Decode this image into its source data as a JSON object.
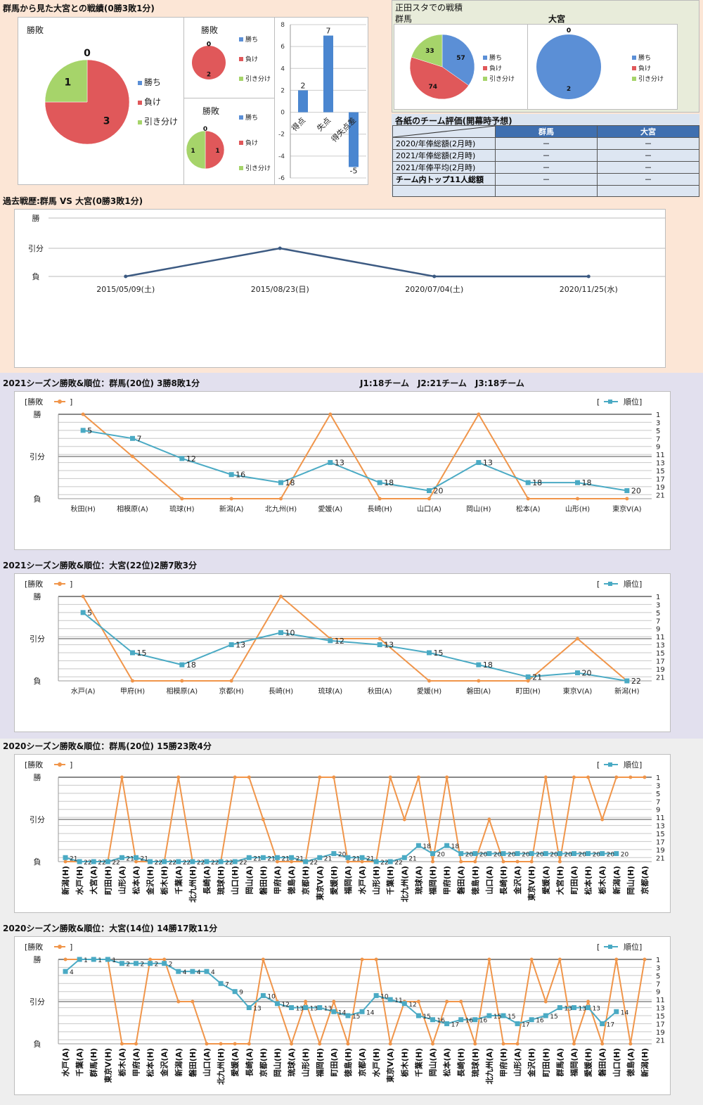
{
  "colors": {
    "win": "#5b8fd6",
    "loss": "#e0585a",
    "draw": "#a6d46a",
    "result": "#f0954a",
    "rank": "#4aaac4",
    "line": "#3c5a82",
    "bar": "#4a86d0"
  },
  "section1": {
    "title": "群馬から見た大宮との戦績(0勝3敗1分)",
    "legend": [
      "勝ち",
      "負け",
      "引き分け"
    ],
    "pie_main": {
      "title": "勝敗",
      "values": [
        0,
        3,
        1
      ]
    },
    "pie_small_top": {
      "title": "勝敗",
      "values": [
        0,
        2,
        0
      ]
    },
    "pie_small_bottom": {
      "title": "勝敗",
      "values": [
        0,
        1,
        1
      ]
    }
  },
  "stadium": {
    "title": "正田スタでの戦積",
    "gunma_label": "群馬",
    "omiya_label": "大宮",
    "legend": [
      "勝ち",
      "負け",
      "引き分け"
    ],
    "gunma_values": [
      57,
      74,
      33
    ],
    "omiya_values": [
      2,
      0,
      0
    ]
  },
  "evaluation": {
    "title": "各紙のチーム評価(開幕時予想)",
    "headers": [
      "",
      "群馬",
      "大宮"
    ],
    "rows": [
      [
        "2020/年俸総額(2月時)",
        "－",
        "－"
      ],
      [
        "2021/年俸総額(2月時)",
        "－",
        "－"
      ],
      [
        "2021/年俸平均(2月時)",
        "－",
        "－"
      ],
      [
        "チーム内トップ11人総額",
        "－",
        "－"
      ],
      [
        "",
        "",
        ""
      ]
    ]
  },
  "history": {
    "title": "過去戦歴:群馬 VS 大宮(0勝3敗1分)"
  },
  "league_note": "J1:18チーム　J2:21チーム　J3:18チーム",
  "chart_data": [
    {
      "type": "pie",
      "title": "勝敗",
      "categories": [
        "勝ち",
        "負け",
        "引き分け"
      ],
      "values": [
        0,
        3,
        1
      ]
    },
    {
      "type": "pie",
      "title": "勝敗",
      "categories": [
        "勝ち",
        "負け",
        "引き分け"
      ],
      "values": [
        0,
        2,
        0
      ]
    },
    {
      "type": "pie",
      "title": "勝敗",
      "categories": [
        "勝ち",
        "負け",
        "引き分け"
      ],
      "values": [
        0,
        1,
        1
      ]
    },
    {
      "type": "bar",
      "categories": [
        "得点",
        "失点",
        "得失点差"
      ],
      "values": [
        2,
        7,
        -5
      ],
      "ylim": [
        -6,
        8
      ],
      "yticks": [
        8,
        6,
        4,
        2,
        0,
        -2,
        -4,
        -6
      ]
    },
    {
      "type": "pie",
      "title": "群馬",
      "categories": [
        "勝ち",
        "負け",
        "引き分け"
      ],
      "values": [
        57,
        74,
        33
      ]
    },
    {
      "type": "pie",
      "title": "大宮",
      "categories": [
        "勝ち",
        "負け",
        "引き分け"
      ],
      "values": [
        2,
        0,
        0
      ]
    },
    {
      "type": "line",
      "title": "過去戦歴:群馬 VS 大宮(0勝3敗1分)",
      "categories": [
        "2015/05/09(土)",
        "2015/08/23(日)",
        "2020/07/04(土)",
        "2020/11/25(水)"
      ],
      "ylabels": [
        "勝",
        "引分",
        "負"
      ],
      "values": [
        0,
        1,
        0,
        0
      ]
    },
    {
      "type": "line",
      "title": "2021シーズン勝敗&順位：群馬(20位) 3勝8敗1分",
      "legend_result": "勝敗",
      "legend_rank": "順位",
      "ylabels": [
        "勝",
        "引分",
        "負"
      ],
      "rank_ticks": [
        1,
        3,
        5,
        7,
        9,
        11,
        13,
        15,
        17,
        19,
        21
      ],
      "categories": [
        "秋田(H)",
        "相模原(A)",
        "琉球(H)",
        "新潟(A)",
        "北九州(H)",
        "愛媛(A)",
        "長崎(H)",
        "山口(A)",
        "岡山(H)",
        "松本(A)",
        "山形(H)",
        "東京V(A)"
      ],
      "series": [
        {
          "name": "勝敗",
          "values": [
            2,
            1,
            0,
            0,
            0,
            2,
            0,
            0,
            2,
            0,
            0,
            0
          ]
        },
        {
          "name": "順位",
          "values": [
            5,
            7,
            12,
            16,
            18,
            13,
            18,
            20,
            13,
            18,
            18,
            20
          ]
        }
      ]
    },
    {
      "type": "line",
      "title": "2021シーズン勝敗&順位：大宮(22位)2勝7敗3分",
      "legend_result": "勝敗",
      "legend_rank": "順位",
      "ylabels": [
        "勝",
        "引分",
        "負"
      ],
      "rank_ticks": [
        1,
        3,
        5,
        7,
        9,
        11,
        13,
        15,
        17,
        19,
        21
      ],
      "categories": [
        "水戸(A)",
        "甲府(H)",
        "相模原(A)",
        "京都(H)",
        "長崎(H)",
        "琉球(A)",
        "秋田(A)",
        "愛媛(H)",
        "磐田(A)",
        "町田(H)",
        "東京V(A)",
        "新潟(H)"
      ],
      "series": [
        {
          "name": "勝敗",
          "values": [
            2,
            0,
            0,
            0,
            2,
            1,
            1,
            0,
            0,
            0,
            1,
            0
          ]
        },
        {
          "name": "順位",
          "values": [
            5,
            15,
            18,
            13,
            10,
            12,
            13,
            15,
            18,
            21,
            20,
            22
          ]
        }
      ]
    },
    {
      "type": "line",
      "title": "2020シーズン勝敗&順位：群馬(20位) 15勝23敗4分",
      "legend_result": "勝敗",
      "legend_rank": "順位",
      "ylabels": [
        "勝",
        "引分",
        "負"
      ],
      "rank_ticks": [
        1,
        3,
        5,
        7,
        9,
        11,
        13,
        15,
        17,
        19,
        21
      ],
      "categories": [
        "新潟(H)",
        "水戸(H)",
        "大宮(A)",
        "町田(H)",
        "山形(A)",
        "松本(A)",
        "金沢(H)",
        "栃木(H)",
        "千葉(A)",
        "北九州(H)",
        "長崎(A)",
        "琉球(H)",
        "山口(H)",
        "岡山(A)",
        "磐田(H)",
        "甲府(A)",
        "徳島(A)",
        "京都(H)",
        "東京V(A)",
        "愛媛(H)",
        "福岡(A)",
        "水戸(A)",
        "山形(H)",
        "千葉(H)",
        "北九州(A)",
        "琉球(A)",
        "福岡(H)",
        "甲府(H)",
        "磐田(A)",
        "徳島(H)",
        "山口(A)",
        "長崎(H)",
        "金沢(A)",
        "東京V(H)",
        "愛媛(A)",
        "大宮(H)",
        "町田(A)",
        "松本(H)",
        "栃木(A)",
        "新潟(A)",
        "岡山(H)",
        "京都(A)"
      ],
      "series": [
        {
          "name": "勝敗",
          "values": [
            0,
            0,
            0,
            0,
            2,
            0,
            0,
            0,
            2,
            0,
            0,
            0,
            2,
            2,
            1,
            0,
            0,
            0,
            2,
            2,
            0,
            0,
            0,
            2,
            1,
            2,
            0,
            2,
            0,
            0,
            1,
            0,
            0,
            0,
            2,
            0,
            2,
            2,
            1,
            2,
            2,
            2
          ]
        },
        {
          "name": "順位",
          "values": [
            21,
            22,
            22,
            22,
            21,
            21,
            22,
            22,
            22,
            22,
            22,
            22,
            22,
            21,
            21,
            21,
            21,
            22,
            21,
            20,
            21,
            21,
            22,
            22,
            21,
            18,
            20,
            18,
            20,
            20,
            20,
            20,
            20,
            20,
            20,
            20,
            20,
            20,
            20,
            20,
            null,
            null
          ]
        }
      ]
    },
    {
      "type": "line",
      "title": "2020シーズン勝敗&順位：大宮(14位) 14勝17敗11分",
      "legend_result": "勝敗",
      "legend_rank": "順位",
      "ylabels": [
        "勝",
        "引分",
        "負"
      ],
      "rank_ticks": [
        1,
        3,
        5,
        7,
        9,
        11,
        13,
        15,
        17,
        19,
        21
      ],
      "categories": [
        "水戸(A)",
        "千葉(A)",
        "群馬(H)",
        "東京V(H)",
        "栃木(A)",
        "甲府(A)",
        "松本(H)",
        "金沢(A)",
        "新潟(A)",
        "磐田(H)",
        "山口(A)",
        "北九州(H)",
        "愛媛(A)",
        "長崎(A)",
        "京都(H)",
        "岡山(H)",
        "琉球(A)",
        "山形(H)",
        "福岡(H)",
        "町田(A)",
        "徳島(H)",
        "京都(A)",
        "水戸(H)",
        "東京V(A)",
        "栃木(H)",
        "千葉(H)",
        "岡山(A)",
        "松本(A)",
        "長崎(H)",
        "琉球(H)",
        "北九州(A)",
        "甲府(H)",
        "山形(A)",
        "金沢(H)",
        "町田(H)",
        "群馬(A)",
        "福岡(A)",
        "愛媛(H)",
        "磐田(A)",
        "山口(H)",
        "徳島(A)",
        "新潟(H)"
      ],
      "series": [
        {
          "name": "勝敗",
          "values": [
            2,
            2,
            2,
            2,
            0,
            0,
            2,
            2,
            1,
            1,
            0,
            0,
            0,
            0,
            2,
            1,
            0,
            1,
            0,
            1,
            0,
            2,
            2,
            0,
            1,
            1,
            0,
            1,
            1,
            0,
            2,
            0,
            0,
            2,
            1,
            2,
            0,
            1,
            0,
            2,
            0,
            2
          ]
        },
        {
          "name": "順位",
          "values": [
            4,
            1,
            1,
            1,
            2,
            2,
            2,
            2,
            4,
            4,
            4,
            7,
            9,
            13,
            10,
            12,
            13,
            13,
            13,
            14,
            15,
            14,
            10,
            11,
            12,
            15,
            16,
            17,
            16,
            16,
            15,
            15,
            17,
            16,
            15,
            13,
            13,
            13,
            17,
            14,
            null,
            null
          ]
        }
      ]
    }
  ]
}
